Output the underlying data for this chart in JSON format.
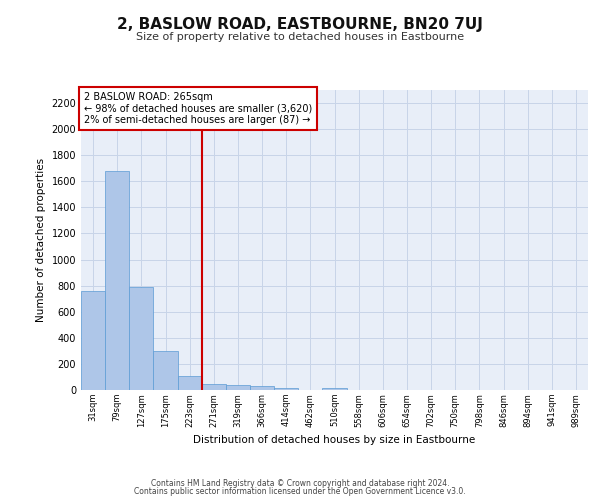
{
  "title": "2, BASLOW ROAD, EASTBOURNE, BN20 7UJ",
  "subtitle": "Size of property relative to detached houses in Eastbourne",
  "xlabel": "Distribution of detached houses by size in Eastbourne",
  "ylabel": "Number of detached properties",
  "footnote1": "Contains HM Land Registry data © Crown copyright and database right 2024.",
  "footnote2": "Contains public sector information licensed under the Open Government Licence v3.0.",
  "annotation_line1": "2 BASLOW ROAD: 265sqm",
  "annotation_line2": "← 98% of detached houses are smaller (3,620)",
  "annotation_line3": "2% of semi-detached houses are larger (87) →",
  "bar_color": "#aec6e8",
  "bar_edge_color": "#5b9bd5",
  "grid_color": "#c8d4e8",
  "vline_color": "#cc0000",
  "background_color": "#e8eef8",
  "categories": [
    "31sqm",
    "79sqm",
    "127sqm",
    "175sqm",
    "223sqm",
    "271sqm",
    "319sqm",
    "366sqm",
    "414sqm",
    "462sqm",
    "510sqm",
    "558sqm",
    "606sqm",
    "654sqm",
    "702sqm",
    "750sqm",
    "798sqm",
    "846sqm",
    "894sqm",
    "941sqm",
    "989sqm"
  ],
  "values": [
    760,
    1680,
    790,
    300,
    110,
    45,
    35,
    30,
    15,
    0,
    15,
    0,
    0,
    0,
    0,
    0,
    0,
    0,
    0,
    0,
    0
  ],
  "ylim": [
    0,
    2300
  ],
  "yticks": [
    0,
    200,
    400,
    600,
    800,
    1000,
    1200,
    1400,
    1600,
    1800,
    2000,
    2200
  ],
  "vline_x": 4.5,
  "title_fontsize": 11,
  "subtitle_fontsize": 8,
  "ylabel_fontsize": 7.5,
  "xlabel_fontsize": 7.5,
  "tick_fontsize": 7,
  "xtick_fontsize": 6,
  "footnote_fontsize": 5.5,
  "annot_fontsize": 7
}
